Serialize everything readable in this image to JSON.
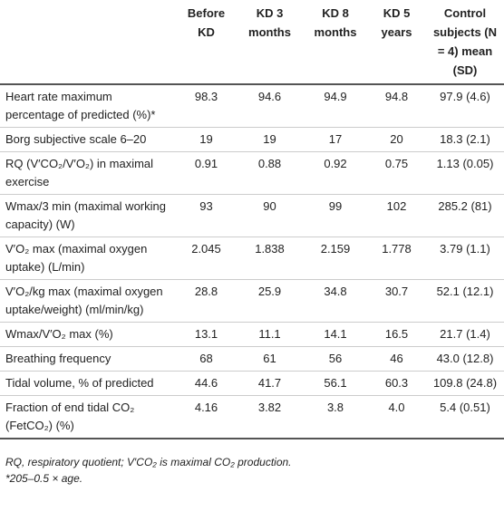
{
  "table": {
    "columns": [
      "",
      "Before KD",
      "KD 3 months",
      "KD 8 months",
      "KD 5 years",
      "Control subjects (N = 4) mean (SD)"
    ],
    "rows": [
      [
        "Heart rate maximum percentage of predicted (%)*",
        "98.3",
        "94.6",
        "94.9",
        "94.8",
        "97.9 (4.6)"
      ],
      [
        "Borg subjective scale 6–20",
        "19",
        "19",
        "17",
        "20",
        "18.3 (2.1)"
      ],
      [
        "RQ (V′CO₂/V′O₂) in maximal exercise",
        "0.91",
        "0.88",
        "0.92",
        "0.75",
        "1.13 (0.05)"
      ],
      [
        "Wmax/3 min (maximal working capacity) (W)",
        "93",
        "90",
        "99",
        "102",
        "285.2 (81)"
      ],
      [
        "V′O₂ max (maximal oxygen uptake) (L/min)",
        "2.045",
        "1.838",
        "2.159",
        "1.778",
        "3.79 (1.1)"
      ],
      [
        "V′O₂/kg max (maximal oxygen uptake/weight) (ml/min/kg)",
        "28.8",
        "25.9",
        "34.8",
        "30.7",
        "52.1 (12.1)"
      ],
      [
        "Wmax/V′O₂ max (%)",
        "13.1",
        "11.1",
        "14.1",
        "16.5",
        "21.7 (1.4)"
      ],
      [
        "Breathing frequency",
        "68",
        "61",
        "56",
        "46",
        "43.0 (12.8)"
      ],
      [
        "Tidal volume, % of predicted",
        "44.6",
        "41.7",
        "56.1",
        "60.3",
        "109.8 (24.8)"
      ],
      [
        "Fraction of end tidal CO₂ (FetCO₂) (%)",
        "4.16",
        "3.82",
        "3.8",
        "4.0",
        "5.4 (0.51)"
      ]
    ]
  },
  "footnotes": [
    "RQ, respiratory quotient; V′CO₂ is maximal CO₂ production.",
    "*205–0.5 × age."
  ]
}
